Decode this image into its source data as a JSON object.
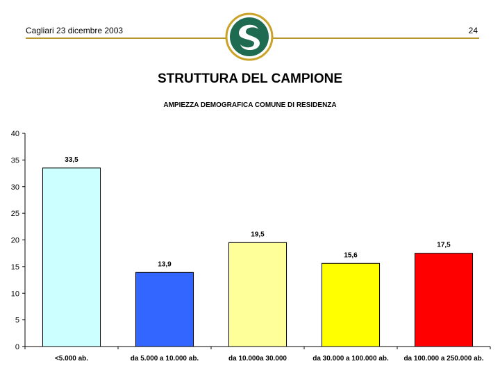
{
  "header": {
    "location_date": "Cagliari 23 dicembre 2003",
    "page_number": "24"
  },
  "slide": {
    "title": "STRUTTURA DEL CAMPIONE"
  },
  "logo": {
    "icon": "university-logo-icon",
    "color": "#1f6b52",
    "ring_color": "#c9a227"
  },
  "chart_data": {
    "type": "bar",
    "title": "AMPIEZZA DEMOGRAFICA COMUNE DI RESIDENZA",
    "categories": [
      "<5.000 ab.",
      "da 5.000 a 10.000 ab.",
      "da 10.000a 30.000",
      "da 30.000 a  100.000 ab.",
      "da 100.000 a  250.000 ab."
    ],
    "values": [
      33.5,
      13.9,
      19.5,
      15.6,
      17.5
    ],
    "value_labels": [
      "33,5",
      "13,9",
      "19,5",
      "15,6",
      "17,5"
    ],
    "colors": [
      "#ccffff",
      "#3366ff",
      "#ffff99",
      "#ffff00",
      "#ff0000"
    ],
    "ylim": [
      0,
      40
    ],
    "yticks": [
      0,
      5,
      10,
      15,
      20,
      25,
      30,
      35,
      40
    ],
    "grid": false,
    "legend": "none"
  }
}
